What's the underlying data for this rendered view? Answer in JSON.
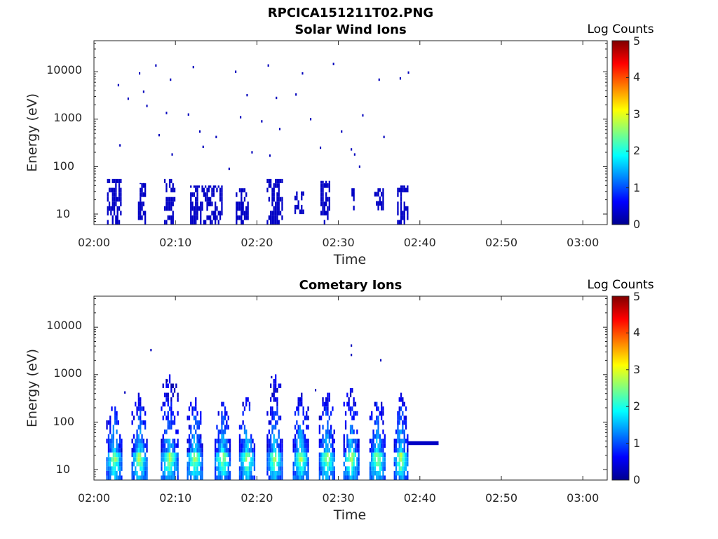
{
  "figure_title": "RPCICA151211T02.PNG",
  "colormap_colors": [
    "#00008f",
    "#0000ff",
    "#0080ff",
    "#00ffff",
    "#80ff80",
    "#ffff00",
    "#ff8000",
    "#ff0000",
    "#800000"
  ],
  "chart_data": [
    {
      "type": "heatmap",
      "title": "Solar Wind Ions",
      "xlabel": "Time",
      "ylabel": "Energy (eV)",
      "x_range": [
        "02:00",
        "03:03"
      ],
      "y_scale": "log",
      "ylim": [
        6,
        45000
      ],
      "x_ticks": [
        "02:00",
        "02:10",
        "02:20",
        "02:30",
        "02:40",
        "02:50",
        "03:00"
      ],
      "y_ticks": [
        "10",
        "100",
        "1000",
        "10000"
      ],
      "colorbar": {
        "label": "Log Counts",
        "range": [
          0,
          5
        ],
        "ticks": [
          "0",
          "1",
          "2",
          "3",
          "4",
          "5"
        ]
      },
      "low_energy_bands": [
        {
          "start_min": 1.6,
          "end_min": 3.4,
          "e_low": 6,
          "e_high": 55,
          "log_counts": 0.3
        },
        {
          "start_min": 5.4,
          "end_min": 6.4,
          "e_low": 6,
          "e_high": 45,
          "log_counts": 0.3
        },
        {
          "start_min": 8.6,
          "end_min": 9.9,
          "e_low": 6,
          "e_high": 55,
          "log_counts": 0.3
        },
        {
          "start_min": 11.8,
          "end_min": 15.8,
          "e_low": 6,
          "e_high": 40,
          "log_counts": 0.3
        },
        {
          "start_min": 17.4,
          "end_min": 19.0,
          "e_low": 6,
          "e_high": 35,
          "log_counts": 0.3
        },
        {
          "start_min": 21.2,
          "end_min": 23.2,
          "e_low": 6,
          "e_high": 55,
          "log_counts": 0.3
        },
        {
          "start_min": 24.6,
          "end_min": 25.8,
          "e_low": 10,
          "e_high": 30,
          "log_counts": 0.3
        },
        {
          "start_min": 27.8,
          "end_min": 29.0,
          "e_low": 6,
          "e_high": 50,
          "log_counts": 0.3
        },
        {
          "start_min": 31.6,
          "end_min": 32.0,
          "e_low": 12,
          "e_high": 35,
          "log_counts": 0.3
        },
        {
          "start_min": 34.4,
          "end_min": 35.6,
          "e_low": 12,
          "e_high": 35,
          "log_counts": 0.3
        },
        {
          "start_min": 37.2,
          "end_min": 38.6,
          "e_low": 6,
          "e_high": 40,
          "log_counts": 0.3
        }
      ],
      "scattered_counts": [
        {
          "t": 3.0,
          "e": 5200
        },
        {
          "t": 4.2,
          "e": 2700
        },
        {
          "t": 5.6,
          "e": 9200
        },
        {
          "t": 6.1,
          "e": 3800
        },
        {
          "t": 6.5,
          "e": 1900
        },
        {
          "t": 7.6,
          "e": 13500
        },
        {
          "t": 8.9,
          "e": 1350
        },
        {
          "t": 9.4,
          "e": 6800
        },
        {
          "t": 12.2,
          "e": 12500
        },
        {
          "t": 11.6,
          "e": 1250
        },
        {
          "t": 13.0,
          "e": 550
        },
        {
          "t": 15.0,
          "e": 420
        },
        {
          "t": 17.4,
          "e": 10000
        },
        {
          "t": 18.0,
          "e": 1100
        },
        {
          "t": 18.8,
          "e": 3200
        },
        {
          "t": 20.6,
          "e": 900
        },
        {
          "t": 21.4,
          "e": 13500
        },
        {
          "t": 22.4,
          "e": 2800
        },
        {
          "t": 24.8,
          "e": 3300
        },
        {
          "t": 25.6,
          "e": 9200
        },
        {
          "t": 27.8,
          "e": 250
        },
        {
          "t": 29.4,
          "e": 14500
        },
        {
          "t": 30.4,
          "e": 550
        },
        {
          "t": 31.6,
          "e": 230
        },
        {
          "t": 32.0,
          "e": 180
        },
        {
          "t": 32.6,
          "e": 100
        },
        {
          "t": 35.0,
          "e": 6800
        },
        {
          "t": 35.6,
          "e": 420
        },
        {
          "t": 37.6,
          "e": 7200
        },
        {
          "t": 38.6,
          "e": 9600
        },
        {
          "t": 3.2,
          "e": 280
        },
        {
          "t": 8.0,
          "e": 460
        },
        {
          "t": 9.6,
          "e": 180
        },
        {
          "t": 13.4,
          "e": 260
        },
        {
          "t": 16.6,
          "e": 90
        },
        {
          "t": 19.4,
          "e": 200
        },
        {
          "t": 21.6,
          "e": 170
        },
        {
          "t": 22.8,
          "e": 620
        },
        {
          "t": 26.6,
          "e": 1000
        },
        {
          "t": 33.0,
          "e": 1200
        }
      ]
    },
    {
      "type": "heatmap",
      "title": "Cometary Ions",
      "xlabel": "Time",
      "ylabel": "Energy (eV)",
      "x_range": [
        "02:00",
        "03:03"
      ],
      "y_scale": "log",
      "ylim": [
        6,
        45000
      ],
      "x_ticks": [
        "02:00",
        "02:10",
        "02:20",
        "02:30",
        "02:40",
        "02:50",
        "03:00"
      ],
      "y_ticks": [
        "10",
        "100",
        "1000",
        "10000"
      ],
      "colorbar": {
        "label": "Log Counts",
        "range": [
          0,
          5
        ],
        "ticks": [
          "0",
          "1",
          "2",
          "3",
          "4",
          "5"
        ]
      },
      "bursts": [
        {
          "start_min": 1.5,
          "end_min": 3.5,
          "e_peak": 220
        },
        {
          "start_min": 4.6,
          "end_min": 6.6,
          "e_peak": 400
        },
        {
          "start_min": 8.2,
          "end_min": 10.4,
          "e_peak": 950
        },
        {
          "start_min": 11.4,
          "end_min": 13.4,
          "e_peak": 310
        },
        {
          "start_min": 14.8,
          "end_min": 16.8,
          "e_peak": 230
        },
        {
          "start_min": 17.8,
          "end_min": 19.8,
          "e_peak": 320
        },
        {
          "start_min": 21.2,
          "end_min": 23.2,
          "e_peak": 900
        },
        {
          "start_min": 24.4,
          "end_min": 26.4,
          "e_peak": 380
        },
        {
          "start_min": 27.6,
          "end_min": 29.6,
          "e_peak": 420
        },
        {
          "start_min": 30.6,
          "end_min": 32.6,
          "e_peak": 480
        },
        {
          "start_min": 33.8,
          "end_min": 35.8,
          "e_peak": 320
        },
        {
          "start_min": 36.8,
          "end_min": 38.6,
          "e_peak": 350
        }
      ],
      "steady_band": {
        "start_min": 38.6,
        "end_min": 42.3,
        "e": 36,
        "log_counts": 0.3
      },
      "scattered_counts": [
        {
          "t": 3.8,
          "e": 420
        },
        {
          "t": 7.0,
          "e": 3300
        },
        {
          "t": 9.0,
          "e": 750
        },
        {
          "t": 21.8,
          "e": 880
        },
        {
          "t": 27.2,
          "e": 470
        },
        {
          "t": 31.6,
          "e": 4100
        },
        {
          "t": 31.6,
          "e": 2600
        },
        {
          "t": 35.2,
          "e": 2000
        }
      ]
    }
  ]
}
